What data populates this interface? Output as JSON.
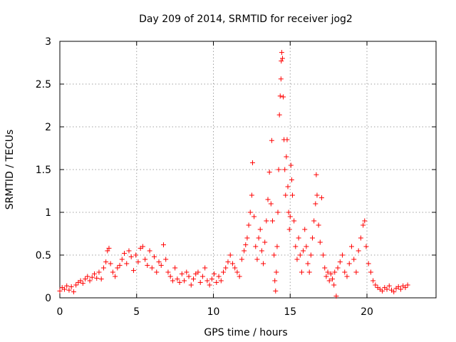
{
  "chart_data": {
    "type": "scatter",
    "title": "Day 209 of 2014, SRMTID for receiver jog2",
    "xlabel": "GPS time / hours",
    "ylabel": "SRMTID / TECUs",
    "xlim": [
      0,
      24.5
    ],
    "ylim": [
      0,
      3
    ],
    "xticks": [
      0,
      5,
      10,
      15,
      20
    ],
    "xtick_labels": [
      "0",
      "5",
      "10",
      "15",
      "20"
    ],
    "yticks": [
      0,
      0.5,
      1,
      1.5,
      2,
      2.5,
      3
    ],
    "ytick_labels": [
      "0",
      "0.5",
      "1",
      "1.5",
      "2",
      "2.5",
      "3"
    ],
    "grid": true,
    "marker": "+",
    "color": "#ff0000",
    "series": [
      {
        "name": "SRMTID",
        "points": [
          [
            0.0,
            0.08
          ],
          [
            0.15,
            0.12
          ],
          [
            0.3,
            0.1
          ],
          [
            0.45,
            0.14
          ],
          [
            0.6,
            0.09
          ],
          [
            0.75,
            0.13
          ],
          [
            0.9,
            0.07
          ],
          [
            1.05,
            0.15
          ],
          [
            1.2,
            0.18
          ],
          [
            1.35,
            0.2
          ],
          [
            1.5,
            0.17
          ],
          [
            1.65,
            0.22
          ],
          [
            1.8,
            0.25
          ],
          [
            1.95,
            0.2
          ],
          [
            2.1,
            0.24
          ],
          [
            2.25,
            0.28
          ],
          [
            2.4,
            0.23
          ],
          [
            2.55,
            0.3
          ],
          [
            2.7,
            0.22
          ],
          [
            2.85,
            0.35
          ],
          [
            3.0,
            0.42
          ],
          [
            3.1,
            0.55
          ],
          [
            3.2,
            0.58
          ],
          [
            3.3,
            0.4
          ],
          [
            3.45,
            0.3
          ],
          [
            3.6,
            0.25
          ],
          [
            3.75,
            0.35
          ],
          [
            3.9,
            0.38
          ],
          [
            4.05,
            0.45
          ],
          [
            4.2,
            0.52
          ],
          [
            4.35,
            0.4
          ],
          [
            4.5,
            0.55
          ],
          [
            4.65,
            0.48
          ],
          [
            4.8,
            0.32
          ],
          [
            4.95,
            0.5
          ],
          [
            5.1,
            0.42
          ],
          [
            5.25,
            0.58
          ],
          [
            5.4,
            0.6
          ],
          [
            5.55,
            0.45
          ],
          [
            5.7,
            0.38
          ],
          [
            5.85,
            0.55
          ],
          [
            6.0,
            0.35
          ],
          [
            6.15,
            0.48
          ],
          [
            6.3,
            0.3
          ],
          [
            6.45,
            0.42
          ],
          [
            6.6,
            0.38
          ],
          [
            6.75,
            0.62
          ],
          [
            6.9,
            0.45
          ],
          [
            7.05,
            0.3
          ],
          [
            7.2,
            0.25
          ],
          [
            7.35,
            0.2
          ],
          [
            7.5,
            0.35
          ],
          [
            7.65,
            0.22
          ],
          [
            7.8,
            0.18
          ],
          [
            7.95,
            0.28
          ],
          [
            8.1,
            0.2
          ],
          [
            8.25,
            0.3
          ],
          [
            8.4,
            0.25
          ],
          [
            8.55,
            0.15
          ],
          [
            8.7,
            0.22
          ],
          [
            8.85,
            0.28
          ],
          [
            9.0,
            0.3
          ],
          [
            9.15,
            0.18
          ],
          [
            9.3,
            0.25
          ],
          [
            9.45,
            0.35
          ],
          [
            9.6,
            0.2
          ],
          [
            9.75,
            0.15
          ],
          [
            9.9,
            0.22
          ],
          [
            10.05,
            0.28
          ],
          [
            10.2,
            0.18
          ],
          [
            10.35,
            0.25
          ],
          [
            10.5,
            0.2
          ],
          [
            10.65,
            0.3
          ],
          [
            10.8,
            0.35
          ],
          [
            10.95,
            0.42
          ],
          [
            11.1,
            0.5
          ],
          [
            11.25,
            0.4
          ],
          [
            11.4,
            0.35
          ],
          [
            11.55,
            0.3
          ],
          [
            11.7,
            0.25
          ],
          [
            11.85,
            0.45
          ],
          [
            12.0,
            0.55
          ],
          [
            12.1,
            0.62
          ],
          [
            12.2,
            0.7
          ],
          [
            12.3,
            0.85
          ],
          [
            12.4,
            1.0
          ],
          [
            12.5,
            1.2
          ],
          [
            12.55,
            1.58
          ],
          [
            12.65,
            0.95
          ],
          [
            12.75,
            0.6
          ],
          [
            12.85,
            0.45
          ],
          [
            12.95,
            0.7
          ],
          [
            13.05,
            0.8
          ],
          [
            13.15,
            0.55
          ],
          [
            13.25,
            0.4
          ],
          [
            13.35,
            0.65
          ],
          [
            13.45,
            0.9
          ],
          [
            13.55,
            1.15
          ],
          [
            13.65,
            1.47
          ],
          [
            13.75,
            1.1
          ],
          [
            13.8,
            1.84
          ],
          [
            13.85,
            0.9
          ],
          [
            13.95,
            0.5
          ],
          [
            14.0,
            0.2
          ],
          [
            14.05,
            0.08
          ],
          [
            14.1,
            0.3
          ],
          [
            14.15,
            0.6
          ],
          [
            14.2,
            1.0
          ],
          [
            14.25,
            1.5
          ],
          [
            14.3,
            2.14
          ],
          [
            14.35,
            2.36
          ],
          [
            14.4,
            2.56
          ],
          [
            14.42,
            2.77
          ],
          [
            14.45,
            2.87
          ],
          [
            14.5,
            2.8
          ],
          [
            14.55,
            2.35
          ],
          [
            14.6,
            1.85
          ],
          [
            14.65,
            1.5
          ],
          [
            14.7,
            1.2
          ],
          [
            14.75,
            1.65
          ],
          [
            14.8,
            1.85
          ],
          [
            14.85,
            1.3
          ],
          [
            14.9,
            1.0
          ],
          [
            14.95,
            0.8
          ],
          [
            15.0,
            0.95
          ],
          [
            15.05,
            1.55
          ],
          [
            15.1,
            1.38
          ],
          [
            15.15,
            1.2
          ],
          [
            15.25,
            0.9
          ],
          [
            15.35,
            0.6
          ],
          [
            15.45,
            0.45
          ],
          [
            15.55,
            0.7
          ],
          [
            15.65,
            0.5
          ],
          [
            15.75,
            0.3
          ],
          [
            15.85,
            0.55
          ],
          [
            15.95,
            0.8
          ],
          [
            16.05,
            0.6
          ],
          [
            16.15,
            0.4
          ],
          [
            16.25,
            0.3
          ],
          [
            16.35,
            0.5
          ],
          [
            16.45,
            0.7
          ],
          [
            16.55,
            0.9
          ],
          [
            16.65,
            1.1
          ],
          [
            16.7,
            1.44
          ],
          [
            16.75,
            1.2
          ],
          [
            16.85,
            0.85
          ],
          [
            16.95,
            0.65
          ],
          [
            17.05,
            1.17
          ],
          [
            17.15,
            0.5
          ],
          [
            17.25,
            0.35
          ],
          [
            17.35,
            0.25
          ],
          [
            17.45,
            0.3
          ],
          [
            17.55,
            0.2
          ],
          [
            17.65,
            0.28
          ],
          [
            17.75,
            0.22
          ],
          [
            17.85,
            0.15
          ],
          [
            17.9,
            0.3
          ],
          [
            18.0,
            0.02
          ],
          [
            18.1,
            0.35
          ],
          [
            18.25,
            0.42
          ],
          [
            18.4,
            0.5
          ],
          [
            18.55,
            0.3
          ],
          [
            18.7,
            0.25
          ],
          [
            18.85,
            0.4
          ],
          [
            19.0,
            0.6
          ],
          [
            19.15,
            0.45
          ],
          [
            19.3,
            0.3
          ],
          [
            19.45,
            0.55
          ],
          [
            19.6,
            0.7
          ],
          [
            19.75,
            0.85
          ],
          [
            19.85,
            0.9
          ],
          [
            19.95,
            0.6
          ],
          [
            20.1,
            0.4
          ],
          [
            20.25,
            0.3
          ],
          [
            20.4,
            0.2
          ],
          [
            20.55,
            0.15
          ],
          [
            20.7,
            0.12
          ],
          [
            20.85,
            0.1
          ],
          [
            21.0,
            0.08
          ],
          [
            21.15,
            0.12
          ],
          [
            21.3,
            0.1
          ],
          [
            21.45,
            0.14
          ],
          [
            21.6,
            0.09
          ],
          [
            21.75,
            0.07
          ],
          [
            21.9,
            0.11
          ],
          [
            22.05,
            0.13
          ],
          [
            22.2,
            0.1
          ],
          [
            22.35,
            0.14
          ],
          [
            22.5,
            0.12
          ],
          [
            22.65,
            0.15
          ]
        ]
      }
    ]
  }
}
